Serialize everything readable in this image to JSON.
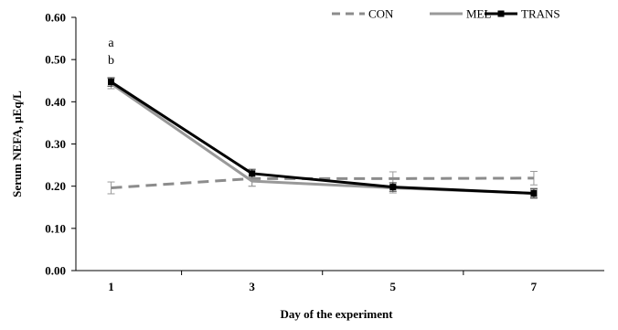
{
  "chart_data": {
    "type": "line",
    "title": "",
    "xlabel": "Day of the experiment",
    "ylabel": "Serum NEFA, µEq/L",
    "x": [
      1,
      3,
      5,
      7
    ],
    "xlim": [
      0.5,
      8
    ],
    "ylim": [
      0,
      0.6
    ],
    "yticks": [
      "0.00",
      "0.10",
      "0.20",
      "0.30",
      "0.40",
      "0.50",
      "0.60"
    ],
    "xticks": [
      "1",
      "3",
      "5",
      "7"
    ],
    "grid": false,
    "legend_position": "top-right",
    "series": [
      {
        "name": "CON",
        "values": [
          0.196,
          0.218,
          0.218,
          0.219
        ],
        "errors": [
          0.014,
          0.018,
          0.016,
          0.016
        ],
        "color": "#8c8c8c",
        "line_style": "dashed",
        "marker": "none"
      },
      {
        "name": "MEL",
        "values": [
          0.443,
          0.212,
          0.196,
          0.183
        ],
        "errors": [
          0.012,
          0.012,
          0.012,
          0.012
        ],
        "color": "#999999",
        "line_style": "solid",
        "marker": "none"
      },
      {
        "name": "TRANS",
        "values": [
          0.447,
          0.23,
          0.198,
          0.183
        ],
        "errors": [
          0.01,
          0.01,
          0.01,
          0.01
        ],
        "color": "#000000",
        "line_style": "solid",
        "marker": "square"
      }
    ],
    "annotations": [
      {
        "text": "a",
        "x": 1
      },
      {
        "text": "b",
        "x": 1
      }
    ]
  }
}
